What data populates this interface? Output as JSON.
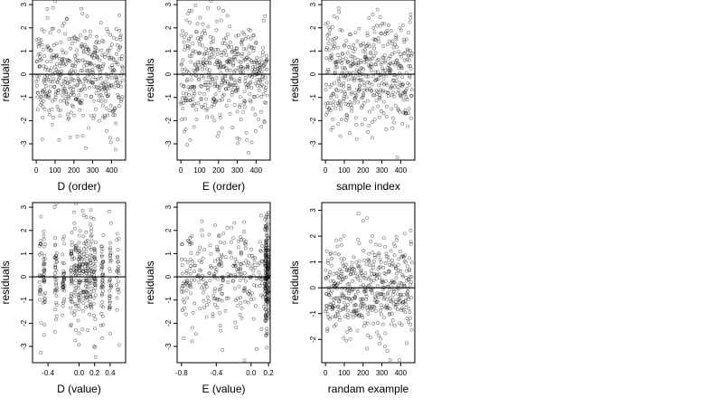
{
  "chart_data": [
    {
      "type": "scatter",
      "xlabel": "D (order)",
      "ylabel": "residuals",
      "xlim": [
        -20,
        475
      ],
      "ylim": [
        -3.7,
        3.2
      ],
      "xticks": [
        0,
        100,
        200,
        300,
        400
      ],
      "yticks": [
        -3,
        -2,
        -1,
        0,
        1,
        2,
        3
      ],
      "hline": 0,
      "gen": {
        "kind": "index",
        "n": 470,
        "xmax": 460,
        "seed": 11,
        "sd": 1.15,
        "amp": 0.15
      }
    },
    {
      "type": "scatter",
      "xlabel": "E (order)",
      "ylabel": "residuals",
      "xlim": [
        -20,
        475
      ],
      "ylim": [
        -3.7,
        3.2
      ],
      "xticks": [
        0,
        100,
        200,
        300,
        400
      ],
      "yticks": [
        -3,
        -2,
        -1,
        0,
        1,
        2,
        3
      ],
      "hline": 0,
      "gen": {
        "kind": "index",
        "n": 470,
        "xmax": 460,
        "seed": 23,
        "sd": 1.15,
        "amp": 0.1
      }
    },
    {
      "type": "scatter",
      "xlabel": "sample index",
      "ylabel": "residuals",
      "xlim": [
        -20,
        475
      ],
      "ylim": [
        -3.7,
        3.2
      ],
      "xticks": [
        0,
        100,
        200,
        300,
        400
      ],
      "yticks": [
        -3,
        -2,
        -1,
        0,
        1,
        2,
        3
      ],
      "hline": 0,
      "gen": {
        "kind": "index",
        "n": 470,
        "xmax": 460,
        "seed": 37,
        "sd": 1.15,
        "amp": 0.05
      }
    },
    {
      "type": "scatter",
      "xlabel": "D (value)",
      "ylabel": "residuals",
      "xlim": [
        -0.6,
        0.6
      ],
      "ylim": [
        -3.7,
        3.2
      ],
      "xticks": [
        -0.4,
        0.0,
        0.2,
        0.4
      ],
      "xticklabels": [
        "-0.4",
        "0.0",
        "0.2",
        "0.4"
      ],
      "yticks": [
        -3,
        -2,
        -1,
        0,
        1,
        2,
        3
      ],
      "hline": 0,
      "gen": {
        "kind": "dvalue",
        "n": 470,
        "seed": 53,
        "sd": 1.15
      }
    },
    {
      "type": "scatter",
      "xlabel": "E (value)",
      "ylabel": "residuals",
      "xlim": [
        -0.85,
        0.22
      ],
      "ylim": [
        -3.7,
        3.2
      ],
      "xticks": [
        -0.8,
        -0.4,
        0.0,
        0.2
      ],
      "xticklabels": [
        "-0.8",
        "-0.4",
        "0.0",
        "0.2"
      ],
      "yticks": [
        -3,
        -2,
        -1,
        0,
        1,
        2,
        3
      ],
      "hline": 0,
      "gen": {
        "kind": "evalue",
        "n": 470,
        "seed": 71,
        "sd": 1.15
      }
    },
    {
      "type": "scatter",
      "xlabel": "randam example",
      "ylabel": "residuals",
      "xlim": [
        -20,
        475
      ],
      "ylim": [
        -2.9,
        3.3
      ],
      "xticks": [
        0,
        100,
        200,
        300,
        400
      ],
      "yticks": [
        -2,
        -1,
        0,
        1,
        2,
        3
      ],
      "hline": 0,
      "gen": {
        "kind": "index",
        "n": 470,
        "xmax": 460,
        "seed": 89,
        "sd": 0.95,
        "amp": 0.0
      }
    }
  ]
}
